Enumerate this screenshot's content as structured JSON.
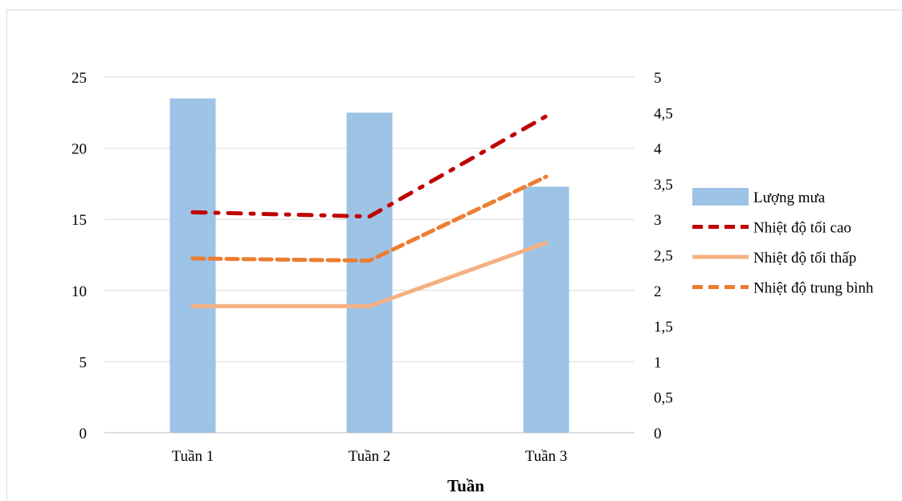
{
  "chart_data": {
    "type": "bar",
    "categories": [
      "Tuần 1",
      "Tuần 2",
      "Tuần 3"
    ],
    "xlabel": "Tuần",
    "ylabel": "",
    "ylim": [
      0,
      25
    ],
    "yticks": [
      "0",
      "5",
      "10",
      "15",
      "20",
      "25"
    ],
    "y2lim": [
      0,
      5
    ],
    "y2ticks": [
      "0",
      "0,5",
      "1",
      "1,5",
      "2",
      "2,5",
      "3",
      "3,5",
      "4",
      "4,5",
      "5"
    ],
    "grid": true,
    "legend_position": "right",
    "series": [
      {
        "name": "Lượng mưa",
        "kind": "bar",
        "axis": "left",
        "values": [
          23.5,
          22.5,
          17.3
        ],
        "color": "#9dc3e6"
      },
      {
        "name": "Nhiệt độ tối cao",
        "kind": "line",
        "axis": "right",
        "style": "dashdot",
        "values": [
          3.1,
          3.04,
          4.45
        ],
        "color": "#c00000"
      },
      {
        "name": "Nhiệt độ tối thấp",
        "kind": "line",
        "axis": "right",
        "style": "solid",
        "values": [
          1.78,
          1.78,
          2.67
        ],
        "color": "#f4b183"
      },
      {
        "name": "Nhiệt độ trung bình",
        "kind": "line",
        "axis": "right",
        "style": "dashed",
        "values": [
          2.45,
          2.42,
          3.6
        ],
        "color": "#ed7d31"
      }
    ]
  }
}
